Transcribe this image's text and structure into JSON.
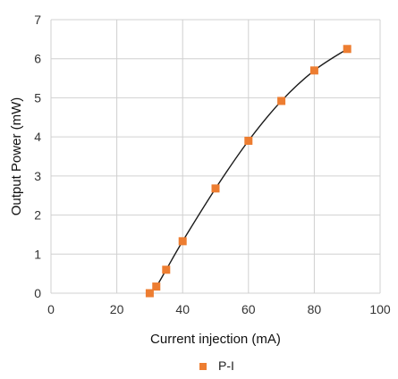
{
  "chart_data": {
    "type": "scatter",
    "xlabel": "Current injection (mA)",
    "ylabel": "Output Power (mW)",
    "xlim": [
      0,
      100
    ],
    "ylim": [
      0,
      7
    ],
    "xticks": [
      "0",
      "20",
      "40",
      "60",
      "80",
      "100"
    ],
    "yticks": [
      "0",
      "1",
      "2",
      "3",
      "4",
      "5",
      "6",
      "7"
    ],
    "grid": true,
    "legend_position": "bottom",
    "trendline": "smooth",
    "series": [
      {
        "name": "P-I",
        "color": "#ed7d31",
        "marker": "square",
        "x": [
          30,
          32,
          35,
          40,
          50,
          60,
          70,
          80,
          90
        ],
        "y": [
          0.0,
          0.17,
          0.6,
          1.33,
          2.68,
          3.9,
          4.92,
          5.7,
          6.25
        ]
      }
    ]
  }
}
